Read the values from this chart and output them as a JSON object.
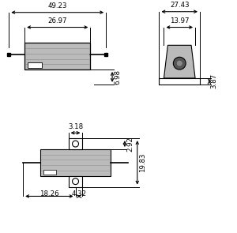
{
  "bg_color": "#ffffff",
  "line_color": "#000000",
  "component_fill": "#bbbbbb",
  "dim_color": "#000000",
  "front_view": {
    "label_49_23": "49.23",
    "label_26_97": "26.97",
    "label_6_98": "6.98"
  },
  "side_view": {
    "label_27_43": "27.43",
    "label_13_97": "13.97",
    "label_3_87": "3.87"
  },
  "bottom_view": {
    "label_18_26": "18.26",
    "label_4_32": "4.32",
    "label_3_18": "3.18",
    "label_2_92": "2.92",
    "label_19_83": "19.83"
  }
}
